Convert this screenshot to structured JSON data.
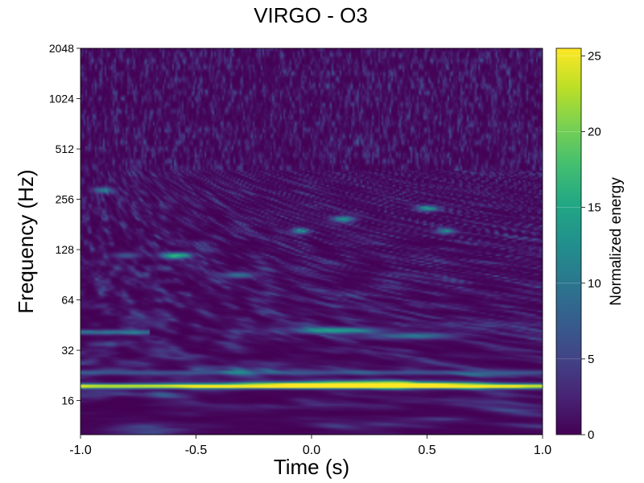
{
  "chart_data": {
    "type": "heatmap",
    "title": "VIRGO - O3",
    "xlabel": "Time (s)",
    "ylabel": "Frequency (Hz)",
    "colorbar_label": "Normalized energy",
    "colormap": "viridis",
    "xlim": [
      -1.0,
      1.0
    ],
    "ylim": [
      10,
      2048
    ],
    "yscale": "log2",
    "xticks": [
      -1.0,
      -0.5,
      0.0,
      0.5,
      1.0
    ],
    "xtick_labels": [
      "-1.0",
      "-0.5",
      "0.0",
      "0.5",
      "1.0"
    ],
    "yticks": [
      16,
      32,
      64,
      128,
      256,
      512,
      1024,
      2048
    ],
    "ytick_labels": [
      "16",
      "32",
      "64",
      "128",
      "256",
      "512",
      "1024",
      "2048"
    ],
    "clim": [
      0,
      25.5
    ],
    "colorbar_ticks": [
      0,
      5,
      10,
      15,
      20,
      25
    ],
    "colorbar_tick_labels": [
      "0",
      "5",
      "10",
      "15",
      "20",
      "25"
    ],
    "grid": false,
    "features": [
      {
        "kind": "line",
        "freq_hz": 19.5,
        "t_start": -1.0,
        "t_end": 1.0,
        "energy": 25
      },
      {
        "kind": "blob",
        "freq_hz": 20,
        "t_center": 0.2,
        "t_width": 0.9,
        "energy": 25
      },
      {
        "kind": "line",
        "freq_hz": 23.5,
        "t_start": -1.0,
        "t_end": 1.0,
        "energy": 6
      },
      {
        "kind": "line",
        "freq_hz": 41,
        "t_start": -1.0,
        "t_end": -0.7,
        "energy": 9
      },
      {
        "kind": "blob",
        "freq_hz": 42,
        "t_center": 0.12,
        "t_width": 0.35,
        "energy": 14
      },
      {
        "kind": "blob",
        "freq_hz": 39,
        "t_center": 0.45,
        "t_width": 0.35,
        "energy": 9
      },
      {
        "kind": "blob",
        "freq_hz": 118,
        "t_center": -0.58,
        "t_width": 0.12,
        "energy": 16
      },
      {
        "kind": "blob",
        "freq_hz": 90,
        "t_center": -0.32,
        "t_width": 0.15,
        "energy": 9
      },
      {
        "kind": "blob",
        "freq_hz": 195,
        "t_center": 0.14,
        "t_width": 0.1,
        "energy": 12
      },
      {
        "kind": "blob",
        "freq_hz": 165,
        "t_center": -0.05,
        "t_width": 0.08,
        "energy": 11
      },
      {
        "kind": "blob",
        "freq_hz": 225,
        "t_center": 0.5,
        "t_width": 0.1,
        "energy": 12
      },
      {
        "kind": "blob",
        "freq_hz": 165,
        "t_center": 0.58,
        "t_width": 0.08,
        "energy": 10
      },
      {
        "kind": "blob",
        "freq_hz": 290,
        "t_center": -0.9,
        "t_width": 0.08,
        "energy": 10
      },
      {
        "kind": "blob",
        "freq_hz": 118,
        "t_center": -0.8,
        "t_width": 0.12,
        "energy": 7
      }
    ]
  }
}
